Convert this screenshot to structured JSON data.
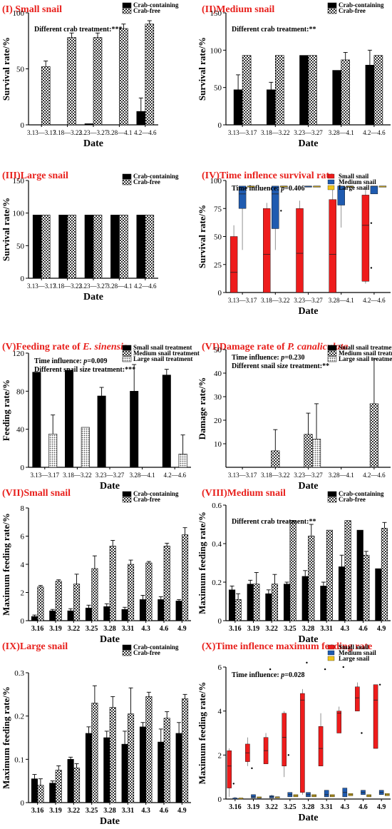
{
  "colors": {
    "title": "#e8201c",
    "black": "#000000",
    "red": "#ee1c1c",
    "blue": "#1f5bb0",
    "yellow": "#f0c419"
  },
  "chart_data": [
    {
      "type": "bar",
      "title": "(I) Small snail",
      "xlabel": "Date",
      "ylabel": "Survival rate/%",
      "ylim": [
        0,
        100
      ],
      "yticks": [
        0,
        50,
        100
      ],
      "categories": [
        "3.13—3.17",
        "3.18—3.22",
        "3.23—3.27",
        "3.28—4.1",
        "4.2—4.6"
      ],
      "series": [
        {
          "name": "Crab-containing",
          "pattern": "solid",
          "values": [
            0,
            0,
            1,
            0,
            12
          ],
          "errors": [
            0,
            0,
            0,
            0,
            12
          ]
        },
        {
          "name": "Crab-free",
          "pattern": "check",
          "values": [
            52,
            78,
            78,
            86,
            90
          ],
          "errors": [
            5,
            4,
            4,
            4,
            3
          ]
        }
      ],
      "annotation": "Different crab treatment:***"
    },
    {
      "type": "bar",
      "title": "(II)Medium snail",
      "xlabel": "Date",
      "ylabel": "Survival rate/%",
      "ylim": [
        0,
        150
      ],
      "yticks": [
        0,
        50,
        100,
        150
      ],
      "categories": [
        "3.13—3.17",
        "3.18—3.22",
        "3.23—3.27",
        "3.28—4.1",
        "4.2—4.6"
      ],
      "series": [
        {
          "name": "Crab-containing",
          "pattern": "solid",
          "values": [
            47,
            47,
            93,
            73,
            80
          ],
          "errors": [
            20,
            10,
            0,
            0,
            20
          ]
        },
        {
          "name": "Crab-free",
          "pattern": "check",
          "values": [
            93,
            93,
            93,
            87,
            93
          ],
          "errors": [
            0,
            0,
            0,
            10,
            0
          ]
        }
      ],
      "annotation": "Different crab treatment:**"
    },
    {
      "type": "bar",
      "title": "(III)Large snail",
      "xlabel": "Date",
      "ylabel": "Survival rate/%",
      "ylim": [
        0,
        150
      ],
      "yticks": [
        0,
        50,
        100,
        150
      ],
      "categories": [
        "3.13—3.17",
        "3.18—3.22",
        "3.23—3.27",
        "3.28—4.1",
        "4.2—4.6"
      ],
      "series": [
        {
          "name": "Crab-containing",
          "pattern": "solid",
          "values": [
            97,
            97,
            97,
            97,
            97
          ],
          "errors": [
            0,
            0,
            0,
            0,
            0
          ]
        },
        {
          "name": "Crab-free",
          "pattern": "check",
          "values": [
            97,
            97,
            97,
            97,
            97
          ],
          "errors": [
            0,
            0,
            0,
            0,
            0
          ]
        }
      ],
      "annotation": ""
    },
    {
      "type": "box",
      "title": "(IV)Time inflence survival rate",
      "xlabel": "Date",
      "ylabel": "Survival rate/%",
      "ylim": [
        0,
        100
      ],
      "yticks": [
        0,
        25,
        50,
        75,
        100
      ],
      "categories": [
        "3.13—3.17",
        "3.18—3.22",
        "3.23—3.27",
        "3.28—4.1",
        "4.2—4.6"
      ],
      "series": [
        {
          "name": "Small snail",
          "color": "red",
          "boxes": [
            [
              0,
              0,
              18,
              50,
              60
            ],
            [
              0,
              0,
              34,
              75,
              80
            ],
            [
              0,
              0,
              35,
              75,
              82
            ],
            [
              0,
              0,
              34,
              83,
              92
            ],
            [
              8,
              10,
              60,
              87,
              95
            ]
          ],
          "outliers": [
            [],
            [],
            [],
            [],
            [
              22,
              62
            ]
          ]
        },
        {
          "name": "Medium snail",
          "color": "blue",
          "boxes": [
            [
              38,
              75,
              88,
              95,
              95
            ],
            [
              38,
              57,
              88,
              95,
              95
            ],
            [
              95,
              95,
              95,
              95,
              95
            ],
            [
              58,
              78,
              95,
              95,
              95
            ],
            [
              88,
              88,
              95,
              95,
              95
            ]
          ],
          "outliers": [
            [],
            [
              73
            ],
            [],
            [],
            []
          ]
        },
        {
          "name": "Large snail",
          "color": "yellow",
          "boxes": [
            [
              95,
              95,
              95,
              95,
              95
            ],
            [
              95,
              95,
              95,
              95,
              95
            ],
            [
              95,
              95,
              95,
              95,
              95
            ],
            [
              95,
              95,
              95,
              95,
              95
            ],
            [
              95,
              95,
              95,
              95,
              95
            ]
          ],
          "outliers": [
            [],
            [],
            [],
            [],
            []
          ]
        }
      ],
      "annotation_prefix": "Time influence: ",
      "annotation_p": "p",
      "annotation_value": "=0.406"
    },
    {
      "type": "bar",
      "title_prefix": "(V)Feeding rate of ",
      "title_italic": "E. sinensis",
      "xlabel": "Date",
      "ylabel": "Feeding rate/%",
      "ylim": [
        0,
        120
      ],
      "yticks": [
        0,
        40,
        80,
        120
      ],
      "categories": [
        "3.13—3.17",
        "3.18—3.22",
        "3.23—3.27",
        "3.28—4.1",
        "4.2—4.6"
      ],
      "series": [
        {
          "name": "Small snail treatment",
          "pattern": "solid",
          "values": [
            100,
            102,
            75,
            80,
            97
          ],
          "errors": [
            0,
            0,
            9,
            28,
            6
          ]
        },
        {
          "name": "Medium snail treatment",
          "pattern": "check",
          "values": [
            0,
            0,
            0,
            0,
            0
          ],
          "errors": [
            0,
            0,
            0,
            0,
            0
          ]
        },
        {
          "name": "Large snail treatment",
          "pattern": "dots",
          "values": [
            35,
            42,
            0,
            0,
            14
          ],
          "errors": [
            20,
            0,
            0,
            0,
            20
          ]
        }
      ],
      "annotation_prefix": "Time influence: ",
      "annotation_p": "p",
      "annotation_value": "=0.009",
      "annotation2": "Different snail size treatment:***"
    },
    {
      "type": "bar",
      "title_prefix": "(VI)Damage rate of ",
      "title_italic": "P. canaliculata",
      "xlabel": "Date",
      "ylabel": "Damage rate/%",
      "ylim": [
        0,
        50
      ],
      "yticks": [
        10,
        20,
        30,
        40,
        50
      ],
      "categories": [
        "3.13—3.17",
        "3.18—3.22",
        "3.23—3.27",
        "3.28—4.1",
        "4.2—4.6"
      ],
      "series": [
        {
          "name": "Small snail treatment",
          "pattern": "solid",
          "values": [
            0,
            0,
            0,
            0,
            0
          ],
          "errors": [
            0,
            0,
            0,
            0,
            0
          ]
        },
        {
          "name": "Medium snail treatment",
          "pattern": "check",
          "values": [
            0,
            7,
            14,
            0,
            27
          ],
          "errors": [
            0,
            9,
            9,
            0,
            19
          ]
        },
        {
          "name": "Large snail treatment",
          "pattern": "dots",
          "values": [
            0,
            0,
            12,
            0,
            0
          ],
          "errors": [
            0,
            0,
            15,
            0,
            0
          ]
        }
      ],
      "annotation_prefix": "Time influence: ",
      "annotation_p": "p",
      "annotation_value": "=0.230",
      "annotation2": "Different snail size treatment:**"
    },
    {
      "type": "bar",
      "title": "(VII)Small snail",
      "xlabel": "Date",
      "ylabel": "Maximum feeding rate/%",
      "ylim": [
        0,
        8
      ],
      "yticks": [
        0,
        2,
        4,
        6,
        8
      ],
      "categories": [
        "3.16",
        "3.19",
        "3.22",
        "3.25",
        "3.28",
        "3.31",
        "4.3",
        "4.6",
        "4.9"
      ],
      "series": [
        {
          "name": "Crab-containing",
          "pattern": "solid",
          "values": [
            0.3,
            0.7,
            0.7,
            0.9,
            1.0,
            0.8,
            1.5,
            1.5,
            1.4
          ],
          "errors": [
            0.1,
            0.1,
            0.15,
            0.2,
            0.2,
            0.15,
            0.3,
            0.2,
            0.1
          ]
        },
        {
          "name": "Crab-free",
          "pattern": "check",
          "values": [
            2.4,
            2.8,
            2.6,
            3.7,
            5.3,
            4.0,
            4.1,
            5.3,
            6.1
          ],
          "errors": [
            0.1,
            0.1,
            0.7,
            0.9,
            0.4,
            0.3,
            0.1,
            0.2,
            0.5
          ]
        }
      ],
      "annotation": ""
    },
    {
      "type": "bar",
      "title": "(VIII)Medium snail",
      "xlabel": "Date",
      "ylabel": "Maximum feeding rate/%",
      "ylim": [
        0,
        0.6
      ],
      "yticks": [
        0,
        0.2,
        0.4,
        0.6
      ],
      "categories": [
        "3.16",
        "3.19",
        "3.22",
        "3.25",
        "3.28",
        "3.31",
        "4.3",
        "4.6",
        "4.9"
      ],
      "series": [
        {
          "name": "Crab-containing",
          "pattern": "solid",
          "values": [
            0.16,
            0.19,
            0.14,
            0.19,
            0.23,
            0.18,
            0.28,
            0.47,
            0.27
          ],
          "errors": [
            0.02,
            0.02,
            0.02,
            0.01,
            0.03,
            0.02,
            0.06,
            0,
            0
          ]
        },
        {
          "name": "Crab-free",
          "pattern": "check",
          "values": [
            0.11,
            0.19,
            0.19,
            0.52,
            0.44,
            0.47,
            0.52,
            0.34,
            0.48
          ],
          "errors": [
            0.03,
            0.06,
            0.05,
            0,
            0.06,
            0,
            0,
            0.02,
            0.03
          ]
        }
      ],
      "annotation": "Different crab treatment:**"
    },
    {
      "type": "bar",
      "title": "(IX)Large snail",
      "xlabel": "Date",
      "ylabel": "Maximum feeding rate/%",
      "ylim": [
        0,
        0.3
      ],
      "yticks": [
        0,
        0.1,
        0.2,
        0.3
      ],
      "categories": [
        "3.16",
        "3.19",
        "3.22",
        "3.25",
        "3.28",
        "3.31",
        "4.3",
        "4.6",
        "4.9"
      ],
      "series": [
        {
          "name": "Crab-containing",
          "pattern": "solid",
          "values": [
            0.055,
            0.045,
            0.1,
            0.16,
            0.15,
            0.135,
            0.175,
            0.14,
            0.16
          ],
          "errors": [
            0.01,
            0.005,
            0.005,
            0.015,
            0.015,
            0.03,
            0.01,
            0.03,
            0.025
          ]
        },
        {
          "name": "Crab-free",
          "pattern": "check",
          "values": [
            0.04,
            0.075,
            0.08,
            0.23,
            0.22,
            0.205,
            0.245,
            0.195,
            0.24
          ],
          "errors": [
            0.015,
            0.01,
            0.01,
            0.04,
            0.025,
            0.06,
            0.01,
            0.015,
            0.01
          ]
        }
      ],
      "annotation": ""
    },
    {
      "type": "box",
      "title": "(X)Time inflence maximum feeding rate",
      "xlabel": "Date",
      "ylabel": "Maximum feeding rate/%",
      "ylim": [
        0,
        6
      ],
      "yticks": [
        0,
        2,
        4,
        6
      ],
      "categories": [
        "3.16",
        "3.19",
        "3.22",
        "3.25",
        "3.28",
        "3.31",
        "4.3",
        "4.6",
        "4.9"
      ],
      "series": [
        {
          "name": "Small snail",
          "color": "red",
          "boxes": [
            [
              0.1,
              0.5,
              1.5,
              2.2,
              2.3
            ],
            [
              1.5,
              1.7,
              2.1,
              2.5,
              2.8
            ],
            [
              1.7,
              1.6,
              2.2,
              2.8,
              3.0
            ],
            [
              1.0,
              1.5,
              2.8,
              3.9,
              4.0
            ],
            [
              0.2,
              0.3,
              4.5,
              4.8,
              5.0
            ],
            [
              1.5,
              1.5,
              2.3,
              3.3,
              3.9
            ],
            [
              3.0,
              3.0,
              3.9,
              4.0,
              4.2
            ],
            [
              4.0,
              4.0,
              4.6,
              5.1,
              5.3
            ],
            [
              2.3,
              2.3,
              4.5,
              5.2,
              5.2
            ]
          ],
          "outliers": [
            [
              0.7
            ],
            [
              1.4
            ],
            [
              5.9
            ],
            [
              2.0
            ],
            [
              6.2
            ],
            [
              5.9
            ],
            [
              6.0
            ],
            [
              3.0
            ],
            [
              5.2
            ]
          ]
        },
        {
          "name": "Medium snail",
          "color": "blue",
          "boxes": [
            [
              0,
              0,
              0,
              0.05,
              0.1
            ],
            [
              0.05,
              0.05,
              0.1,
              0.2,
              0.2
            ],
            [
              0.05,
              0.05,
              0.1,
              0.15,
              0.2
            ],
            [
              0.1,
              0.1,
              0.2,
              0.3,
              0.3
            ],
            [
              0.1,
              0.1,
              0.2,
              0.3,
              0.3
            ],
            [
              0.1,
              0.1,
              0.2,
              0.4,
              0.4
            ],
            [
              0.1,
              0.1,
              0.3,
              0.5,
              0.5
            ],
            [
              0.2,
              0.2,
              0.3,
              0.4,
              0.4
            ],
            [
              0.2,
              0.2,
              0.3,
              0.4,
              0.4
            ]
          ],
          "outliers": [
            [],
            [],
            [],
            [],
            [],
            [],
            [],
            [],
            []
          ]
        },
        {
          "name": "Large snail",
          "color": "yellow",
          "boxes": [
            [
              0,
              0,
              0,
              0.05,
              0.05
            ],
            [
              0.05,
              0.05,
              0.05,
              0.1,
              0.1
            ],
            [
              0.05,
              0.05,
              0.1,
              0.1,
              0.1
            ],
            [
              0.1,
              0.1,
              0.15,
              0.2,
              0.2
            ],
            [
              0.1,
              0.1,
              0.15,
              0.2,
              0.2
            ],
            [
              0.1,
              0.1,
              0.15,
              0.2,
              0.2
            ],
            [
              0.15,
              0.15,
              0.2,
              0.25,
              0.25
            ],
            [
              0.1,
              0.1,
              0.15,
              0.2,
              0.2
            ],
            [
              0.15,
              0.15,
              0.2,
              0.25,
              0.25
            ]
          ],
          "outliers": [
            [],
            [],
            [],
            [],
            [],
            [],
            [],
            [],
            []
          ]
        }
      ],
      "annotation_prefix": "Time influence: ",
      "annotation_p": "p",
      "annotation_value": "=0.028"
    }
  ]
}
